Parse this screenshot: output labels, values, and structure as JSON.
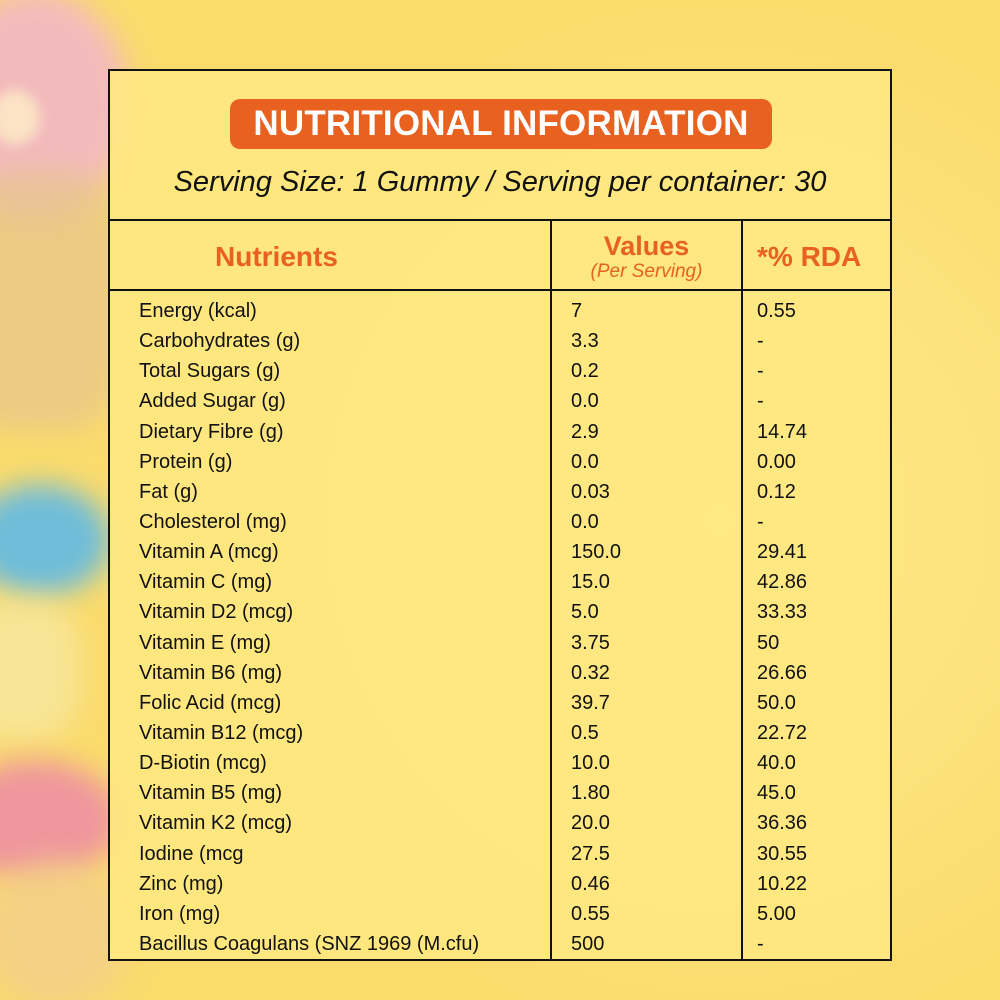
{
  "title": "NUTRITIONAL INFORMATION",
  "serving_info": "Serving Size: 1 Gummy / Serving per container: 30",
  "columns": {
    "nutrients": "Nutrients",
    "values": "Values",
    "values_sub": "(Per Serving)",
    "rda": "*% RDA"
  },
  "colors": {
    "accent": "#e8611f",
    "background": "#fde58a",
    "border": "#111111"
  },
  "rows": [
    {
      "name": "Energy (kcal)",
      "value": "7",
      "rda": "0.55"
    },
    {
      "name": "Carbohydrates (g)",
      "value": "3.3",
      "rda": "-"
    },
    {
      "name": "Total Sugars (g)",
      "value": "0.2",
      "rda": "-"
    },
    {
      "name": "Added Sugar (g)",
      "value": "0.0",
      "rda": "-"
    },
    {
      "name": "Dietary Fibre (g)",
      "value": "2.9",
      "rda": "14.74"
    },
    {
      "name": "Protein (g)",
      "value": "0.0",
      "rda": "0.00"
    },
    {
      "name": "Fat (g)",
      "value": "0.03",
      "rda": "0.12"
    },
    {
      "name": "Cholesterol (mg)",
      "value": "0.0",
      "rda": "-"
    },
    {
      "name": "Vitamin A (mcg)",
      "value": "150.0",
      "rda": "29.41"
    },
    {
      "name": "Vitamin C (mg)",
      "value": "15.0",
      "rda": "42.86"
    },
    {
      "name": "Vitamin D2 (mcg)",
      "value": "5.0",
      "rda": "33.33"
    },
    {
      "name": "Vitamin E (mg)",
      "value": "3.75",
      "rda": "50"
    },
    {
      "name": "Vitamin B6 (mg)",
      "value": "0.32",
      "rda": "26.66"
    },
    {
      "name": "Folic Acid (mcg)",
      "value": "39.7",
      "rda": "50.0"
    },
    {
      "name": "Vitamin B12 (mcg)",
      "value": "0.5",
      "rda": "22.72"
    },
    {
      "name": "D-Biotin (mcg)",
      "value": "10.0",
      "rda": "40.0"
    },
    {
      "name": "Vitamin B5 (mg)",
      "value": "1.80",
      "rda": "45.0"
    },
    {
      "name": "Vitamin K2 (mcg)",
      "value": "20.0",
      "rda": "36.36"
    },
    {
      "name": "Iodine (mcg",
      "value": "27.5",
      "rda": "30.55"
    },
    {
      "name": "Zinc (mg)",
      "value": "0.46",
      "rda": "10.22"
    },
    {
      "name": "Iron (mg)",
      "value": "0.55",
      "rda": "5.00"
    },
    {
      "name": "Bacillus Coagulans (SNZ 1969 (M.cfu)",
      "value": "500",
      "rda": "-"
    }
  ]
}
